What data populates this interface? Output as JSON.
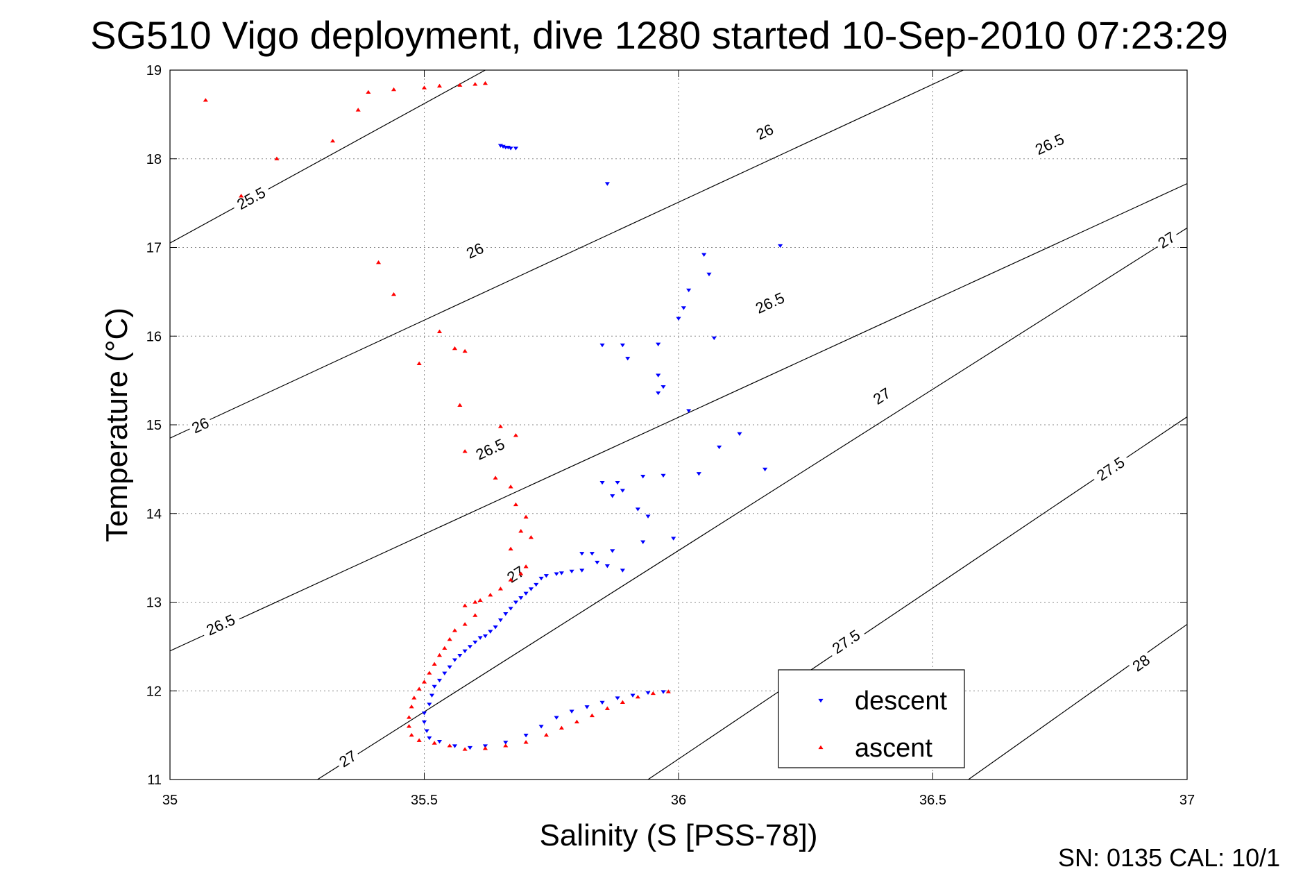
{
  "chart_data": {
    "type": "scatter",
    "title": "SG510 Vigo deployment, dive 1280 started 10-Sep-2010 07:23:29",
    "xlabel": "Salinity (S [PSS-78])",
    "ylabel": "Temperature (°C)",
    "xlim": [
      35,
      37
    ],
    "ylim": [
      11,
      19
    ],
    "xticks": [
      35,
      35.5,
      36,
      36.5,
      37
    ],
    "xtick_labels": [
      "35",
      "35.5",
      "36",
      "36.5",
      "37"
    ],
    "yticks": [
      11,
      12,
      13,
      14,
      15,
      16,
      17,
      18,
      19
    ],
    "ytick_labels": [
      "11",
      "12",
      "13",
      "14",
      "15",
      "16",
      "17",
      "18",
      "19"
    ],
    "grid": true,
    "legend_position": "bottom-right",
    "density_contours": [
      {
        "label": "25.5",
        "points": [
          [
            35.0,
            17.05
          ],
          [
            35.62,
            19.0
          ]
        ],
        "labels_at": [
          [
            35.16,
            17.55
          ]
        ]
      },
      {
        "label": "26",
        "points": [
          [
            35.0,
            14.85
          ],
          [
            36.56,
            19.0
          ]
        ],
        "labels_at": [
          [
            35.06,
            14.99
          ],
          [
            35.6,
            16.96
          ],
          [
            36.17,
            18.3
          ]
        ]
      },
      {
        "label": "26.5",
        "points": [
          [
            35.0,
            12.45
          ],
          [
            37.0,
            17.72
          ]
        ],
        "labels_at": [
          [
            35.1,
            12.74
          ],
          [
            35.63,
            14.72
          ],
          [
            36.18,
            16.37
          ],
          [
            36.73,
            18.16
          ]
        ]
      },
      {
        "label": "27",
        "points": [
          [
            35.29,
            11.0
          ],
          [
            37.0,
            17.22
          ]
        ],
        "labels_at": [
          [
            35.35,
            11.23
          ],
          [
            35.68,
            13.31
          ],
          [
            36.4,
            15.32
          ],
          [
            36.96,
            17.08
          ]
        ]
      },
      {
        "label": "27.5",
        "points": [
          [
            35.94,
            11.0
          ],
          [
            37.0,
            15.09
          ]
        ],
        "labels_at": [
          [
            36.33,
            12.55
          ],
          [
            36.85,
            14.5
          ]
        ]
      },
      {
        "label": "28",
        "points": [
          [
            36.57,
            11.0
          ],
          [
            37.0,
            12.75
          ]
        ],
        "labels_at": [
          [
            36.91,
            12.31
          ]
        ]
      }
    ],
    "series": [
      {
        "name": "descent",
        "color": "#0000ff",
        "marker": "triangle-down",
        "points": [
          [
            35.65,
            18.15
          ],
          [
            35.655,
            18.14
          ],
          [
            35.66,
            18.13
          ],
          [
            35.665,
            18.13
          ],
          [
            35.67,
            18.12
          ],
          [
            35.68,
            18.12
          ],
          [
            35.86,
            17.72
          ],
          [
            36.2,
            17.02
          ],
          [
            36.05,
            16.92
          ],
          [
            36.06,
            16.7
          ],
          [
            36.02,
            16.52
          ],
          [
            36.01,
            16.32
          ],
          [
            36.0,
            16.2
          ],
          [
            36.07,
            15.98
          ],
          [
            35.85,
            15.9
          ],
          [
            35.89,
            15.9
          ],
          [
            35.96,
            15.91
          ],
          [
            35.9,
            15.75
          ],
          [
            35.96,
            15.56
          ],
          [
            35.97,
            15.43
          ],
          [
            35.96,
            15.36
          ],
          [
            36.02,
            15.16
          ],
          [
            36.12,
            14.9
          ],
          [
            36.08,
            14.75
          ],
          [
            36.17,
            14.5
          ],
          [
            36.04,
            14.45
          ],
          [
            35.85,
            14.35
          ],
          [
            35.88,
            14.35
          ],
          [
            35.93,
            14.42
          ],
          [
            35.97,
            14.43
          ],
          [
            35.87,
            14.2
          ],
          [
            35.89,
            14.26
          ],
          [
            35.92,
            14.05
          ],
          [
            35.94,
            13.97
          ],
          [
            35.99,
            13.72
          ],
          [
            35.93,
            13.68
          ],
          [
            35.81,
            13.55
          ],
          [
            35.83,
            13.55
          ],
          [
            35.87,
            13.58
          ],
          [
            35.84,
            13.45
          ],
          [
            35.86,
            13.41
          ],
          [
            35.89,
            13.36
          ],
          [
            35.81,
            13.36
          ],
          [
            35.79,
            13.35
          ],
          [
            35.77,
            13.33
          ],
          [
            35.76,
            13.32
          ],
          [
            35.74,
            13.3
          ],
          [
            35.73,
            13.27
          ],
          [
            35.72,
            13.2
          ],
          [
            35.71,
            13.15
          ],
          [
            35.7,
            13.1
          ],
          [
            35.69,
            13.05
          ],
          [
            35.68,
            13.0
          ],
          [
            35.67,
            12.93
          ],
          [
            35.66,
            12.87
          ],
          [
            35.65,
            12.8
          ],
          [
            35.64,
            12.72
          ],
          [
            35.63,
            12.67
          ],
          [
            35.62,
            12.62
          ],
          [
            35.61,
            12.6
          ],
          [
            35.6,
            12.55
          ],
          [
            35.59,
            12.5
          ],
          [
            35.58,
            12.45
          ],
          [
            35.57,
            12.4
          ],
          [
            35.56,
            12.35
          ],
          [
            35.55,
            12.27
          ],
          [
            35.54,
            12.2
          ],
          [
            35.53,
            12.12
          ],
          [
            35.52,
            12.05
          ],
          [
            35.515,
            11.95
          ],
          [
            35.51,
            11.85
          ],
          [
            35.5,
            11.75
          ],
          [
            35.5,
            11.65
          ],
          [
            35.505,
            11.55
          ],
          [
            35.51,
            11.47
          ],
          [
            35.53,
            11.43
          ],
          [
            35.56,
            11.38
          ],
          [
            35.59,
            11.36
          ],
          [
            35.62,
            11.38
          ],
          [
            35.66,
            11.42
          ],
          [
            35.7,
            11.5
          ],
          [
            35.73,
            11.6
          ],
          [
            35.76,
            11.7
          ],
          [
            35.79,
            11.77
          ],
          [
            35.82,
            11.82
          ],
          [
            35.85,
            11.87
          ],
          [
            35.88,
            11.92
          ],
          [
            35.91,
            11.95
          ],
          [
            35.94,
            11.98
          ],
          [
            35.97,
            11.99
          ]
        ]
      },
      {
        "name": "ascent",
        "color": "#ff0000",
        "marker": "triangle-up",
        "points": [
          [
            35.07,
            18.66
          ],
          [
            35.39,
            18.75
          ],
          [
            35.44,
            18.78
          ],
          [
            35.5,
            18.8
          ],
          [
            35.53,
            18.82
          ],
          [
            35.57,
            18.83
          ],
          [
            35.6,
            18.84
          ],
          [
            35.62,
            18.85
          ],
          [
            35.37,
            18.55
          ],
          [
            35.32,
            18.2
          ],
          [
            35.21,
            18.0
          ],
          [
            35.14,
            17.58
          ],
          [
            35.41,
            16.83
          ],
          [
            35.44,
            16.47
          ],
          [
            35.53,
            16.05
          ],
          [
            35.49,
            15.69
          ],
          [
            35.56,
            15.86
          ],
          [
            35.58,
            15.83
          ],
          [
            35.57,
            15.22
          ],
          [
            35.65,
            14.98
          ],
          [
            35.68,
            14.88
          ],
          [
            35.58,
            14.7
          ],
          [
            35.64,
            14.4
          ],
          [
            35.67,
            14.3
          ],
          [
            35.68,
            14.1
          ],
          [
            35.7,
            13.96
          ],
          [
            35.69,
            13.8
          ],
          [
            35.71,
            13.73
          ],
          [
            35.67,
            13.6
          ],
          [
            35.7,
            13.4
          ],
          [
            35.69,
            13.32
          ],
          [
            35.67,
            13.25
          ],
          [
            35.65,
            13.15
          ],
          [
            35.63,
            13.08
          ],
          [
            35.61,
            13.02
          ],
          [
            35.6,
            13.0
          ],
          [
            35.58,
            12.96
          ],
          [
            35.6,
            12.85
          ],
          [
            35.58,
            12.75
          ],
          [
            35.56,
            12.68
          ],
          [
            35.55,
            12.58
          ],
          [
            35.54,
            12.48
          ],
          [
            35.53,
            12.4
          ],
          [
            35.52,
            12.3
          ],
          [
            35.51,
            12.2
          ],
          [
            35.5,
            12.1
          ],
          [
            35.49,
            12.02
          ],
          [
            35.48,
            11.92
          ],
          [
            35.475,
            11.82
          ],
          [
            35.47,
            11.7
          ],
          [
            35.47,
            11.6
          ],
          [
            35.475,
            11.5
          ],
          [
            35.49,
            11.44
          ],
          [
            35.52,
            11.41
          ],
          [
            35.55,
            11.38
          ],
          [
            35.58,
            11.34
          ],
          [
            35.62,
            11.35
          ],
          [
            35.66,
            11.38
          ],
          [
            35.7,
            11.42
          ],
          [
            35.74,
            11.5
          ],
          [
            35.77,
            11.58
          ],
          [
            35.8,
            11.65
          ],
          [
            35.83,
            11.72
          ],
          [
            35.86,
            11.8
          ],
          [
            35.89,
            11.87
          ],
          [
            35.92,
            11.93
          ],
          [
            35.95,
            11.97
          ],
          [
            35.98,
            11.99
          ]
        ]
      }
    ]
  },
  "footer": {
    "text": "SN: 0135  CAL: 10/1"
  }
}
